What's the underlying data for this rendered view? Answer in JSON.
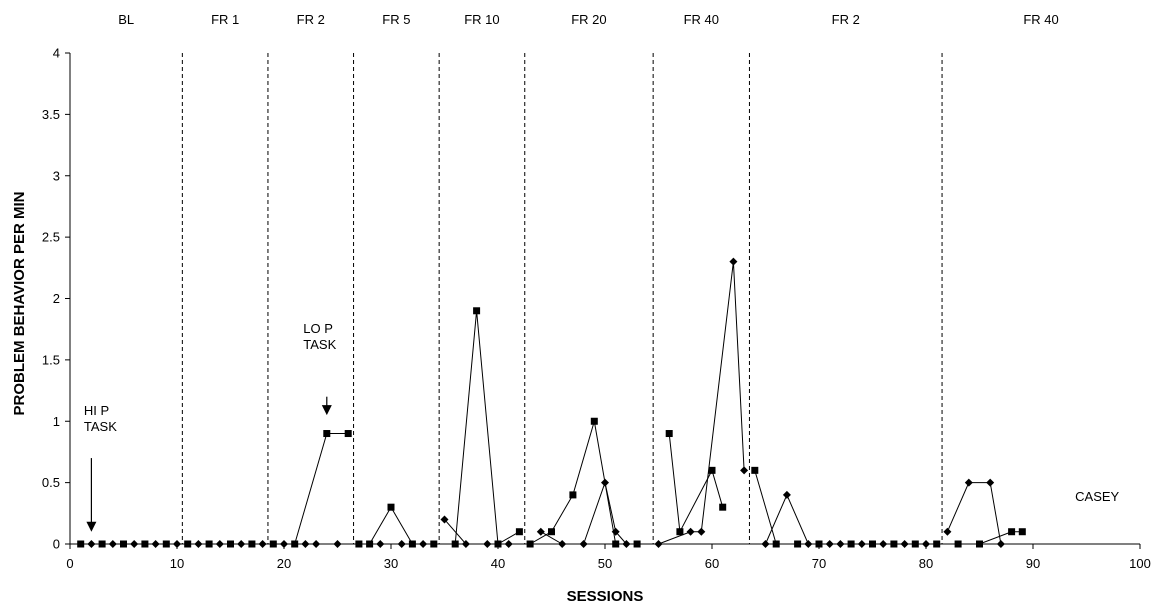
{
  "chart_data": {
    "type": "line",
    "xlabel": "SESSIONS",
    "ylabel": "PROBLEM BEHAVIOR PER MIN",
    "xlim": [
      0,
      100
    ],
    "ylim": [
      0,
      4
    ],
    "x_ticks": [
      "0",
      "10",
      "20",
      "30",
      "40",
      "50",
      "60",
      "70",
      "80",
      "90",
      "100"
    ],
    "y_ticks": [
      "0",
      "0.5",
      "1",
      "1.5",
      "2",
      "2.5",
      "3",
      "3.5",
      "4"
    ],
    "grid": false,
    "legend": "none",
    "phases": [
      {
        "label": "BL",
        "start": 0,
        "end": 10.5
      },
      {
        "label": "FR 1",
        "start": 10.5,
        "end": 18.5
      },
      {
        "label": "FR 2",
        "start": 18.5,
        "end": 26.5
      },
      {
        "label": "FR 5",
        "start": 26.5,
        "end": 34.5
      },
      {
        "label": "FR 10",
        "start": 34.5,
        "end": 42.5
      },
      {
        "label": "FR 20",
        "start": 42.5,
        "end": 54.5
      },
      {
        "label": "FR 40",
        "start": 54.5,
        "end": 63.5
      },
      {
        "label": "FR 2",
        "start": 63.5,
        "end": 81.5
      },
      {
        "label": "FR 40",
        "start": 81.5,
        "end": 100
      }
    ],
    "phase_lines": [
      10.5,
      18.5,
      26.5,
      34.5,
      42.5,
      54.5,
      63.5,
      81.5
    ],
    "annotations": [
      {
        "text": [
          "HI P",
          "TASK"
        ],
        "arrow_x": 2,
        "arrow_from_y": 0.7,
        "arrow_to_y": 0.1
      },
      {
        "text": [
          "LO P",
          "TASK"
        ],
        "arrow_x": 24,
        "arrow_from_y": 1.2,
        "arrow_to_y": 1.05
      }
    ],
    "corner_label": "CASEY",
    "series": [
      {
        "marker": "square",
        "segments": [
          [
            [
              1,
              0
            ],
            [
              3,
              0
            ],
            [
              5,
              0
            ],
            [
              7,
              0
            ],
            [
              9,
              0
            ]
          ],
          [
            [
              11,
              0
            ],
            [
              13,
              0
            ],
            [
              15,
              0
            ],
            [
              17,
              0
            ]
          ],
          [
            [
              19,
              0
            ],
            [
              21,
              0
            ],
            [
              24,
              0.9
            ],
            [
              26,
              0.9
            ]
          ],
          [
            [
              27,
              0
            ],
            [
              28,
              0
            ],
            [
              30,
              0.3
            ],
            [
              32,
              0
            ],
            [
              34,
              0
            ]
          ],
          [
            [
              36,
              0
            ],
            [
              38,
              1.9
            ],
            [
              40,
              0
            ],
            [
              42,
              0.1
            ]
          ],
          [
            [
              43,
              0
            ],
            [
              45,
              0.1
            ],
            [
              47,
              0.4
            ],
            [
              49,
              1.0
            ],
            [
              51,
              0
            ],
            [
              53,
              0
            ]
          ],
          [
            [
              56,
              0.9
            ],
            [
              57,
              0.1
            ],
            [
              60,
              0.6
            ],
            [
              61,
              0.3
            ]
          ],
          [
            [
              64,
              0.6
            ],
            [
              66,
              0
            ],
            [
              68,
              0
            ],
            [
              70,
              0
            ],
            [
              73,
              0
            ],
            [
              75,
              0
            ],
            [
              77,
              0
            ],
            [
              79,
              0
            ],
            [
              81,
              0
            ]
          ],
          [
            [
              83,
              0
            ],
            [
              85,
              0
            ],
            [
              88,
              0.1
            ],
            [
              89,
              0.1
            ]
          ]
        ]
      },
      {
        "marker": "diamond",
        "segments": [
          [
            [
              2,
              0
            ],
            [
              4,
              0
            ],
            [
              6,
              0
            ],
            [
              8,
              0
            ],
            [
              10,
              0
            ]
          ],
          [
            [
              12,
              0
            ],
            [
              14,
              0
            ],
            [
              16,
              0
            ],
            [
              18,
              0
            ]
          ],
          [
            [
              20,
              0
            ],
            [
              22,
              0
            ],
            [
              23,
              0
            ],
            [
              25,
              0
            ]
          ],
          [
            [
              29,
              0
            ],
            [
              31,
              0
            ],
            [
              33,
              0
            ]
          ],
          [
            [
              35,
              0.2
            ],
            [
              37,
              0
            ],
            [
              39,
              0
            ],
            [
              41,
              0
            ]
          ],
          [
            [
              44,
              0.1
            ],
            [
              46,
              0
            ],
            [
              48,
              0
            ],
            [
              50,
              0.5
            ],
            [
              51,
              0.1
            ],
            [
              52,
              0
            ]
          ],
          [
            [
              55,
              0
            ],
            [
              58,
              0.1
            ],
            [
              59,
              0.1
            ],
            [
              62,
              2.3
            ],
            [
              63,
              0.6
            ]
          ],
          [
            [
              65,
              0
            ],
            [
              67,
              0.4
            ],
            [
              69,
              0
            ],
            [
              71,
              0
            ],
            [
              72,
              0
            ],
            [
              74,
              0
            ],
            [
              76,
              0
            ],
            [
              78,
              0
            ],
            [
              80,
              0
            ]
          ],
          [
            [
              82,
              0.1
            ],
            [
              84,
              0.5
            ],
            [
              86,
              0.5
            ],
            [
              87,
              0
            ]
          ]
        ]
      }
    ]
  }
}
